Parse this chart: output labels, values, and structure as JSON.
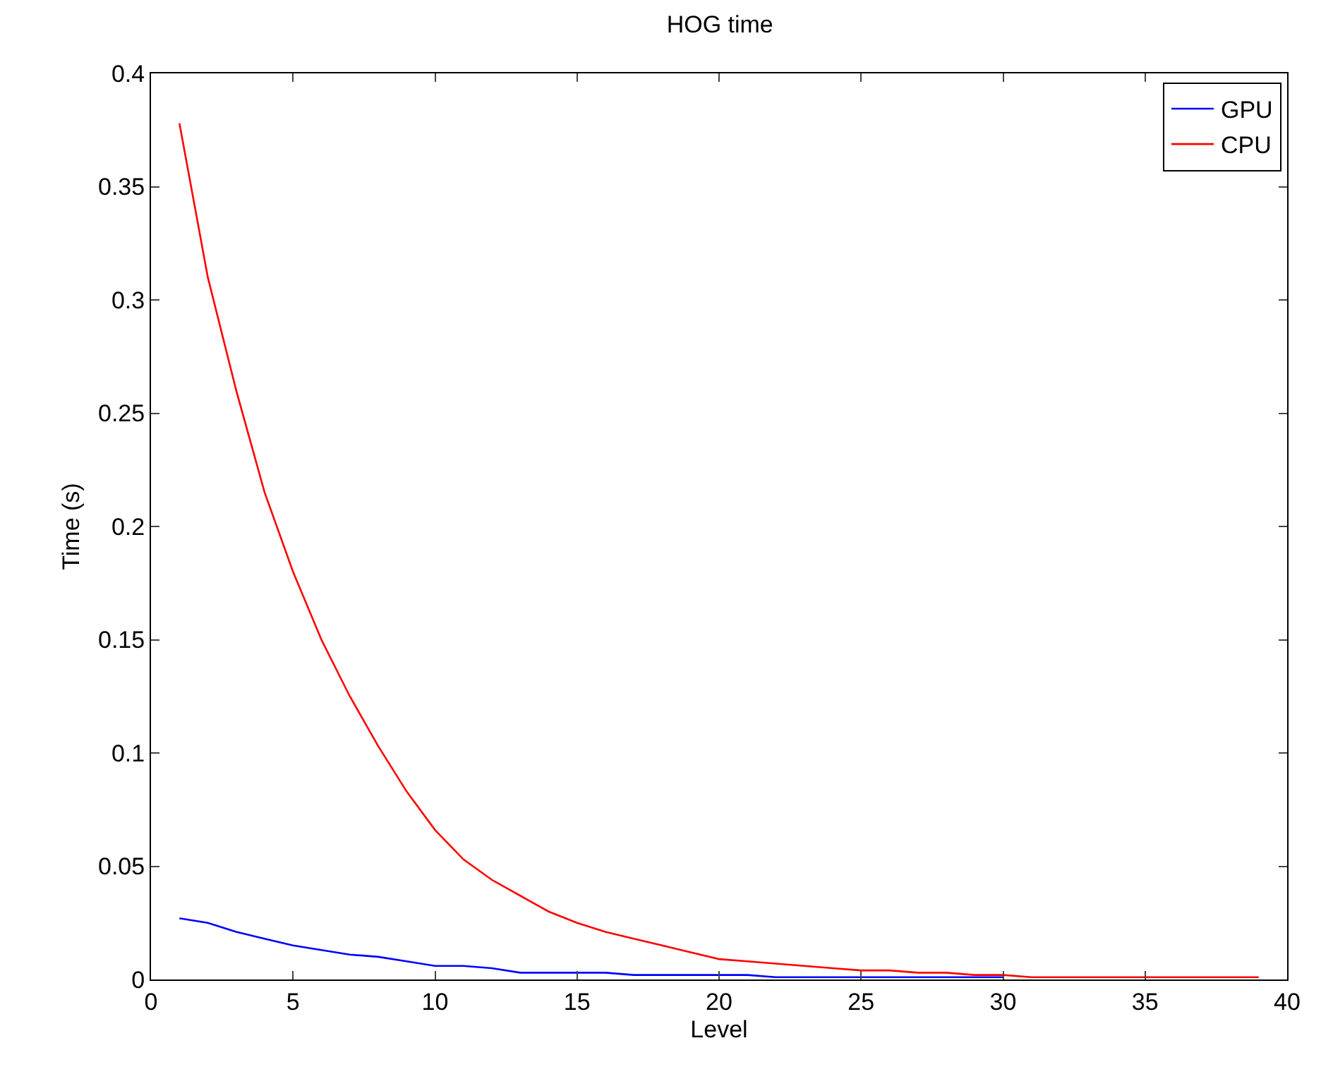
{
  "chart_data": {
    "type": "line",
    "title": "HOG time",
    "xlabel": "Level",
    "ylabel": "Time (s)",
    "xlim": [
      0,
      40
    ],
    "xticks": [
      0,
      5,
      10,
      15,
      20,
      25,
      30,
      35,
      40
    ],
    "ylim": [
      0,
      0.4
    ],
    "yticks": [
      0,
      0.05,
      0.1,
      0.15,
      0.2,
      0.25,
      0.3,
      0.35,
      0.4
    ],
    "legend": "top right",
    "marker": "none",
    "line_style": "solid",
    "series": [
      {
        "name": "GPU",
        "color": "#0000ff",
        "x": [
          1,
          2,
          3,
          4,
          5,
          6,
          7,
          8,
          9,
          10,
          11,
          12,
          13,
          14,
          15,
          16,
          17,
          18,
          19,
          20,
          21,
          22,
          23,
          24,
          25,
          26,
          27,
          28,
          29,
          30
        ],
        "values": [
          0.027,
          0.025,
          0.021,
          0.018,
          0.015,
          0.013,
          0.011,
          0.01,
          0.008,
          0.006,
          0.006,
          0.005,
          0.003,
          0.003,
          0.003,
          0.003,
          0.002,
          0.002,
          0.002,
          0.002,
          0.002,
          0.001,
          0.001,
          0.001,
          0.001,
          0.001,
          0.001,
          0.001,
          0.001,
          0.001
        ]
      },
      {
        "name": "CPU",
        "color": "#ff0000",
        "x": [
          1,
          2,
          3,
          4,
          5,
          6,
          7,
          8,
          9,
          10,
          11,
          12,
          13,
          14,
          15,
          16,
          17,
          18,
          19,
          20,
          21,
          22,
          23,
          24,
          25,
          26,
          27,
          28,
          29,
          30,
          31,
          32,
          33,
          34,
          35,
          36,
          37,
          38,
          39
        ],
        "values": [
          0.378,
          0.31,
          0.26,
          0.215,
          0.18,
          0.15,
          0.125,
          0.103,
          0.083,
          0.066,
          0.053,
          0.044,
          0.037,
          0.03,
          0.025,
          0.021,
          0.018,
          0.015,
          0.012,
          0.009,
          0.008,
          0.007,
          0.006,
          0.005,
          0.004,
          0.004,
          0.003,
          0.003,
          0.002,
          0.002,
          0.001,
          0.001,
          0.001,
          0.001,
          0.001,
          0.001,
          0.001,
          0.001,
          0.001
        ]
      }
    ]
  }
}
